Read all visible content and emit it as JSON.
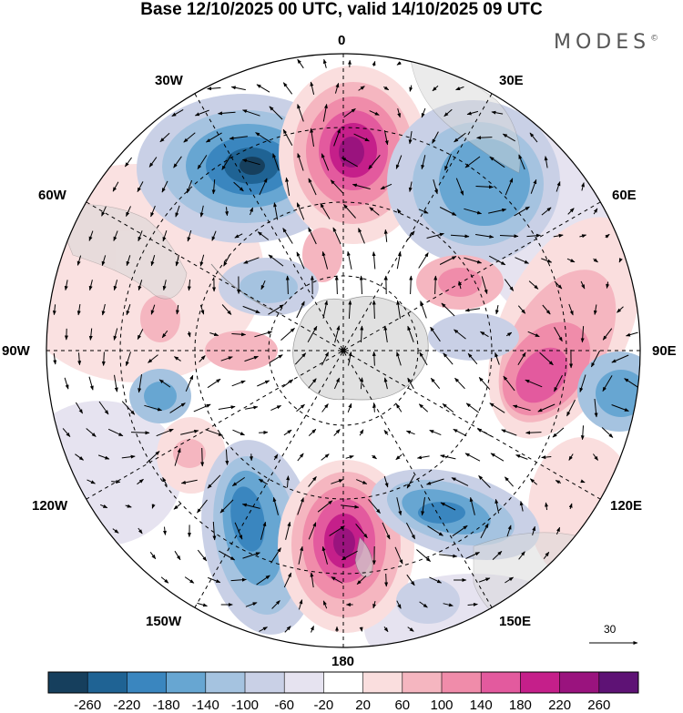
{
  "title": "Base 12/10/2025 00 UTC, valid 14/10/2025 09 UTC",
  "brand": "MODES",
  "brand_mark": "©",
  "longitude_labels": {
    "lon_0": "0",
    "lon_30e": "30E",
    "lon_60e": "60E",
    "lon_90e": "90E",
    "lon_120e": "120E",
    "lon_150e": "150E",
    "lon_180": "180",
    "lon_150w": "150W",
    "lon_120w": "120W",
    "lon_90w": "90W",
    "lon_60w": "60W",
    "lon_30w": "30W"
  },
  "wind_scale_label": "30",
  "colorbar": {
    "colors": [
      "#163f5d",
      "#1f6394",
      "#3a86bf",
      "#67a6d2",
      "#a5c3e0",
      "#c9d0e6",
      "#e6e3f0",
      "#ffffff",
      "#fadede",
      "#f5b6c0",
      "#f08caa",
      "#e35a9e",
      "#c51f8a",
      "#9a137e",
      "#5e1275"
    ],
    "ticks": [
      "-260",
      "-220",
      "-180",
      "-140",
      "-100",
      "-60",
      "-20",
      "20",
      "60",
      "100",
      "140",
      "180",
      "220",
      "260"
    ]
  }
}
